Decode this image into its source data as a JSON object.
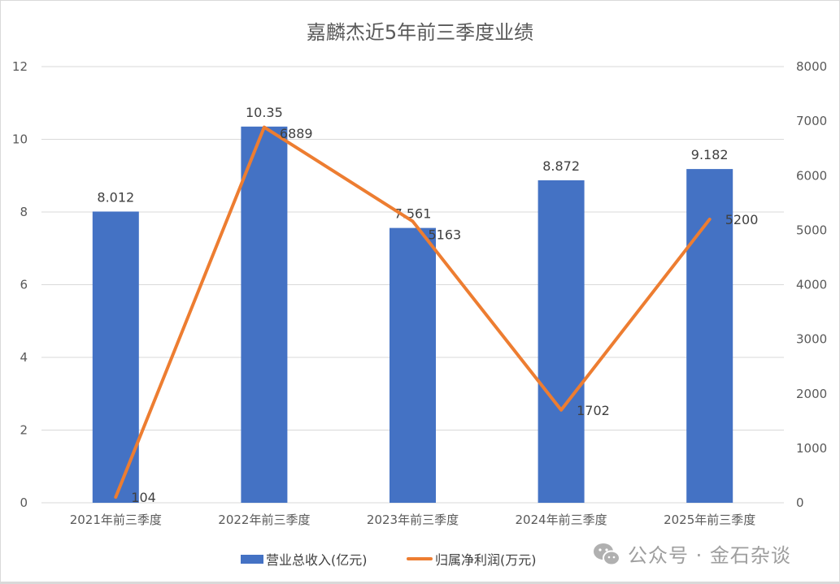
{
  "chart_data": {
    "type": "bar+line",
    "title": "嘉麟杰近5年前三季度业绩",
    "categories": [
      "2021年前三季度",
      "2022年前三季度",
      "2023年前三季度",
      "2024年前三季度",
      "2025年前三季度"
    ],
    "series": [
      {
        "name": "营业总收入(亿元)",
        "type": "bar",
        "axis": "left",
        "values": [
          8.012,
          10.35,
          7.561,
          8.872,
          9.182
        ],
        "labels": [
          "8.012",
          "10.35",
          "7.561",
          "8.872",
          "9.182"
        ],
        "color": "#4472c4"
      },
      {
        "name": "归属净利润(万元)",
        "type": "line",
        "axis": "right",
        "values": [
          104,
          6889,
          5163,
          1702,
          5200
        ],
        "labels": [
          "104",
          "6889",
          "5163",
          "1702",
          "5200"
        ],
        "color": "#ed7d31"
      }
    ],
    "y_left": {
      "range": [
        0,
        12
      ],
      "ticks": [
        "0",
        "2",
        "4",
        "6",
        "8",
        "10",
        "12"
      ]
    },
    "y_right": {
      "range": [
        0,
        8000
      ],
      "ticks": [
        "0",
        "1000",
        "2000",
        "3000",
        "4000",
        "5000",
        "6000",
        "7000",
        "8000"
      ]
    },
    "grid": true,
    "legend": "bottom"
  },
  "watermark": {
    "icon": "wechat-icon",
    "text": "公众号 · 金石杂谈"
  }
}
